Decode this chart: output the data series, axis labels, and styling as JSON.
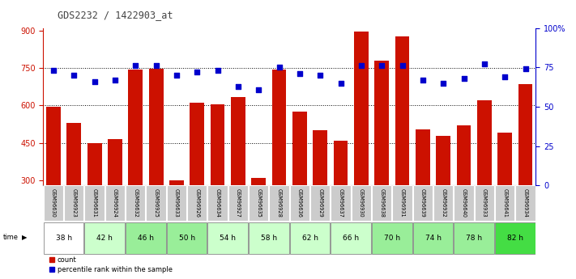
{
  "title": "GDS2232 / 1422903_at",
  "samples": [
    "GSM96630",
    "GSM96923",
    "GSM96631",
    "GSM96924",
    "GSM96632",
    "GSM96925",
    "GSM96633",
    "GSM96926",
    "GSM96634",
    "GSM96927",
    "GSM96635",
    "GSM96928",
    "GSM96636",
    "GSM96929",
    "GSM96637",
    "GSM96930",
    "GSM96638",
    "GSM96931",
    "GSM96639",
    "GSM96932",
    "GSM96640",
    "GSM96933",
    "GSM96641",
    "GSM96934"
  ],
  "counts": [
    595,
    530,
    450,
    465,
    745,
    748,
    300,
    610,
    605,
    635,
    310,
    743,
    575,
    500,
    460,
    895,
    780,
    875,
    505,
    480,
    520,
    620,
    490,
    685
  ],
  "percentiles": [
    73,
    70,
    66,
    67,
    76,
    76,
    70,
    72,
    73,
    63,
    61,
    75,
    71,
    70,
    65,
    76,
    76,
    76,
    67,
    65,
    68,
    77,
    69,
    74
  ],
  "time_groups": [
    {
      "label": "38 h",
      "start": 0,
      "end": 2
    },
    {
      "label": "42 h",
      "start": 2,
      "end": 4
    },
    {
      "label": "46 h",
      "start": 4,
      "end": 6
    },
    {
      "label": "50 h",
      "start": 6,
      "end": 8
    },
    {
      "label": "54 h",
      "start": 8,
      "end": 10
    },
    {
      "label": "58 h",
      "start": 10,
      "end": 12
    },
    {
      "label": "62 h",
      "start": 12,
      "end": 14
    },
    {
      "label": "66 h",
      "start": 14,
      "end": 16
    },
    {
      "label": "70 h",
      "start": 16,
      "end": 18
    },
    {
      "label": "74 h",
      "start": 18,
      "end": 20
    },
    {
      "label": "78 h",
      "start": 20,
      "end": 22
    },
    {
      "label": "82 h",
      "start": 22,
      "end": 24
    }
  ],
  "time_colors": {
    "38 h": "#ffffff",
    "42 h": "#ccffcc",
    "46 h": "#99ee99",
    "50 h": "#99ee99",
    "54 h": "#ccffcc",
    "58 h": "#ccffcc",
    "62 h": "#ccffcc",
    "66 h": "#ccffcc",
    "70 h": "#99ee99",
    "74 h": "#99ee99",
    "78 h": "#99ee99",
    "82 h": "#44dd44"
  },
  "ylim_left": [
    280,
    910
  ],
  "ylim_right": [
    0,
    100
  ],
  "yticks_left": [
    300,
    450,
    600,
    750,
    900
  ],
  "yticks_right": [
    0,
    25,
    50,
    75,
    100
  ],
  "bar_color": "#cc1100",
  "dot_color": "#0000cc",
  "bg_color": "#ffffff",
  "sample_bg": "#cccccc",
  "left_tick_color": "#cc1100",
  "right_tick_color": "#0000cc",
  "title_color": "#444444"
}
